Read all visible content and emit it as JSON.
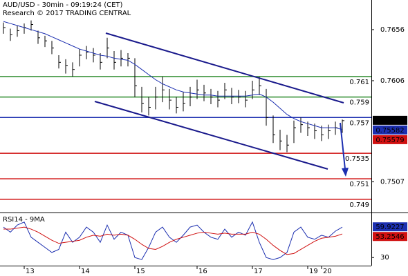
{
  "chart_data": [
    {
      "type": "ohlc",
      "title": "AUD/USD - 30min - 09:19:24 (CET)",
      "subtitle": "Research © 2017 TRADING CENTRAL",
      "categories": [
        null,
        null,
        null,
        "13",
        null,
        null,
        null,
        null,
        null,
        null,
        null,
        "14",
        null,
        null,
        null,
        null,
        null,
        null,
        null,
        "15",
        null,
        null,
        null,
        null,
        null,
        null,
        null,
        null,
        "16",
        null,
        null,
        null,
        null,
        null,
        null,
        null,
        "17",
        null,
        null,
        null,
        null,
        null,
        null,
        null,
        "19",
        null,
        "20",
        null,
        null,
        null
      ],
      "high": [
        0.7663,
        0.7657,
        0.766,
        0.7662,
        0.7665,
        0.7655,
        0.765,
        0.7645,
        0.7631,
        0.7627,
        0.7624,
        0.7637,
        0.764,
        0.7638,
        0.7633,
        0.7648,
        0.7635,
        0.7636,
        0.7633,
        0.7628,
        0.76,
        0.759,
        0.76,
        0.761,
        0.7598,
        0.759,
        0.7595,
        0.76,
        0.7607,
        0.7602,
        0.7598,
        0.7596,
        0.7604,
        0.7599,
        0.7597,
        0.7596,
        0.7606,
        0.761,
        0.7598,
        0.7572,
        0.7558,
        0.7553,
        0.7567,
        0.757,
        0.7566,
        0.7564,
        0.7562,
        0.7563,
        0.7566,
        0.7568
      ],
      "low": [
        0.7652,
        0.7645,
        0.7649,
        0.7652,
        0.7655,
        0.7642,
        0.7639,
        0.7632,
        0.7618,
        0.7613,
        0.761,
        0.762,
        0.7627,
        0.7624,
        0.7617,
        0.7628,
        0.7617,
        0.762,
        0.762,
        0.759,
        0.7575,
        0.7572,
        0.7578,
        0.7585,
        0.7578,
        0.7574,
        0.7576,
        0.7581,
        0.7588,
        0.7586,
        0.7583,
        0.758,
        0.7588,
        0.7583,
        0.7584,
        0.758,
        0.7588,
        0.7592,
        0.7562,
        0.7545,
        0.7538,
        0.7536,
        0.7545,
        0.7555,
        0.7552,
        0.7549,
        0.7547,
        0.7549,
        0.7553,
        0.7555
      ],
      "close": [
        0.7658,
        0.7651,
        0.7655,
        0.7658,
        0.7661,
        0.7648,
        0.7645,
        0.7638,
        0.7624,
        0.7621,
        0.7617,
        0.7631,
        0.7634,
        0.7631,
        0.7624,
        0.7638,
        0.7624,
        0.7628,
        0.7628,
        0.7601,
        0.7584,
        0.758,
        0.759,
        0.7597,
        0.7587,
        0.758,
        0.7584,
        0.759,
        0.7597,
        0.7594,
        0.759,
        0.7587,
        0.7597,
        0.759,
        0.759,
        0.7587,
        0.7597,
        0.7601,
        0.757,
        0.7553,
        0.7547,
        0.7543,
        0.756,
        0.7563,
        0.756,
        0.7557,
        0.7553,
        0.7557,
        0.756,
        0.75669
      ],
      "ma": [
        0.7664,
        0.7662,
        0.766,
        0.7658,
        0.7656,
        0.7654,
        0.7652,
        0.7649,
        0.7646,
        0.7643,
        0.764,
        0.7637,
        0.7635,
        0.7633,
        0.7631,
        0.763,
        0.7628,
        0.7627,
        0.7626,
        0.7622,
        0.7617,
        0.7612,
        0.7607,
        0.7603,
        0.76,
        0.7597,
        0.7595,
        0.7594,
        0.7593,
        0.7592,
        0.7592,
        0.7591,
        0.7591,
        0.7591,
        0.7591,
        0.7591,
        0.7592,
        0.7593,
        0.759,
        0.7585,
        0.7579,
        0.7573,
        0.7569,
        0.7566,
        0.7564,
        0.7562,
        0.756,
        0.756,
        0.756,
        0.75582
      ],
      "ma_color": "#1c2fb0",
      "bar_color": "#000000",
      "ylim": [
        0.7477,
        0.7685
      ],
      "yticks": [
        0.7656,
        0.7606,
        0.7507
      ],
      "levels": [
        {
          "value": 0.761,
          "color": "#2a8a2a",
          "text_color": "#000000"
        },
        {
          "value": 0.759,
          "color": "#2a8a2a",
          "text_color": "#000000"
        },
        {
          "value": 0.757,
          "color": "#1c2fb0",
          "text_color": "#000000"
        },
        {
          "value": 0.7535,
          "color": "#d01010",
          "text_color": "#d01010"
        },
        {
          "value": 0.751,
          "color": "#d01010",
          "text_color": "#d01010"
        },
        {
          "value": 0.749,
          "color": "#d01010",
          "text_color": "#d01010"
        }
      ],
      "markers": [
        {
          "value": 0.75669,
          "color": "#000000"
        },
        {
          "value": 0.75582,
          "color": "#1c2fb0"
        },
        {
          "value": 0.75579,
          "color": "#d01010"
        }
      ]
    },
    {
      "type": "line",
      "title": "RSI14 - 9MA",
      "series": [
        {
          "color": "#1c2fb0",
          "values": [
            60,
            55,
            62,
            65,
            50,
            45,
            40,
            35,
            38,
            55,
            45,
            50,
            60,
            55,
            45,
            62,
            48,
            55,
            52,
            30,
            28,
            40,
            55,
            60,
            50,
            45,
            52,
            60,
            62,
            55,
            50,
            48,
            58,
            50,
            55,
            52,
            65,
            45,
            30,
            28,
            30,
            35,
            55,
            60,
            50,
            48,
            52,
            50,
            56,
            59.9227
          ]
        },
        {
          "color": "#d01010",
          "values": [
            58,
            58,
            59,
            60,
            58,
            55,
            51,
            47,
            44,
            45,
            46,
            47,
            50,
            52,
            51,
            53,
            52,
            53,
            52,
            48,
            43,
            39,
            38,
            41,
            45,
            48,
            50,
            52,
            54,
            55,
            54,
            53,
            54,
            53,
            53,
            53,
            55,
            53,
            48,
            42,
            37,
            33,
            34,
            38,
            42,
            46,
            49,
            50,
            51,
            53.2546
          ]
        }
      ],
      "ylim": [
        22,
        73
      ],
      "yticks": [
        30
      ]
    }
  ]
}
